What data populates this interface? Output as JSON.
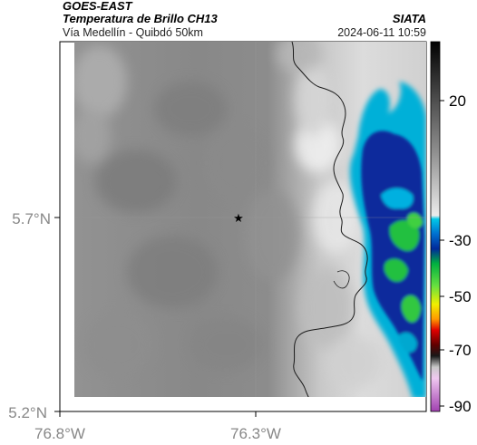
{
  "header": {
    "satellite": "GOES-EAST",
    "product": "Temperatura de Brillo CH13",
    "region": "Vía Medellín - Quibdó 50km",
    "agency": "SIATA",
    "datetime": "2024-06-11 10:59"
  },
  "axes": {
    "y_ticks": [
      "5.7°N",
      "5.2°N"
    ],
    "x_ticks": [
      "76.8°W",
      "76.3°W"
    ]
  },
  "colorbar": {
    "tick_labels": [
      "20",
      "-30",
      "-50",
      "-70",
      "-90"
    ]
  },
  "colors": {
    "cloud_cold": "#1a2a9a",
    "cloud_mid": "#00b8d8",
    "cloud_green": "#22c040",
    "land_gray": "#8a8a8a"
  },
  "marker": {
    "symbol": "★"
  }
}
